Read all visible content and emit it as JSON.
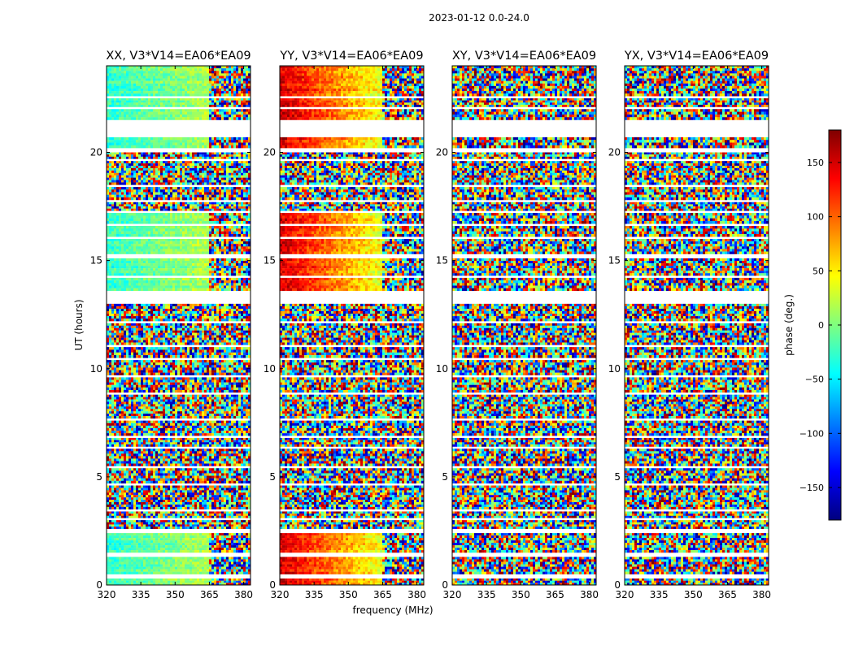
{
  "chart_data": {
    "type": "heatmap",
    "title": "2023-01-12 0.0-24.0",
    "xlabel": "frequency (MHz)",
    "ylabel": "UT (hours)",
    "xlim": [
      320,
      383
    ],
    "ylim": [
      0,
      24
    ],
    "xticks": [
      320,
      335,
      350,
      365,
      380
    ],
    "yticks": [
      0,
      5,
      10,
      15,
      20
    ],
    "colorbar": {
      "label": "phase (deg.)",
      "range": [
        -180,
        180
      ],
      "ticks": [
        150,
        100,
        50,
        0,
        -50,
        -100,
        -150
      ],
      "tick_labels": [
        "150",
        "100",
        "50",
        "0",
        "−50",
        "−100",
        "−150"
      ],
      "colormap": "jet",
      "colors": [
        "#00007f",
        "#0000ff",
        "#007fff",
        "#00ffff",
        "#7fff7f",
        "#ffff00",
        "#ff7f00",
        "#ff0000",
        "#7f0000"
      ]
    },
    "panels": [
      {
        "title": "XX, V3*V14=EA06*EA09",
        "coherence": "medium"
      },
      {
        "title": "YY, V3*V14=EA06*EA09",
        "coherence": "high"
      },
      {
        "title": "XY, V3*V14=EA06*EA09",
        "coherence": "noise"
      },
      {
        "title": "YX, V3*V14=EA06*EA09",
        "coherence": "noise"
      }
    ],
    "data_time_ranges_hours": [
      [
        0.0,
        0.3
      ],
      [
        0.5,
        1.3
      ],
      [
        1.5,
        2.4
      ],
      [
        2.6,
        3.0
      ],
      [
        3.1,
        3.4
      ],
      [
        3.5,
        4.6
      ],
      [
        4.7,
        5.4
      ],
      [
        5.5,
        6.3
      ],
      [
        6.4,
        6.8
      ],
      [
        6.9,
        7.6
      ],
      [
        7.7,
        8.8
      ],
      [
        8.9,
        9.6
      ],
      [
        9.7,
        10.4
      ],
      [
        10.5,
        11.0
      ],
      [
        11.1,
        12.1
      ],
      [
        12.2,
        13.0
      ],
      [
        13.6,
        14.2
      ],
      [
        14.3,
        15.1
      ],
      [
        15.3,
        16.0
      ],
      [
        16.1,
        16.6
      ],
      [
        16.7,
        17.2
      ],
      [
        17.3,
        17.7
      ],
      [
        17.8,
        18.4
      ],
      [
        18.5,
        19.6
      ],
      [
        19.7,
        20.0
      ],
      [
        20.2,
        20.7
      ],
      [
        21.5,
        22.0
      ],
      [
        22.1,
        22.5
      ],
      [
        22.6,
        24.0
      ]
    ]
  }
}
